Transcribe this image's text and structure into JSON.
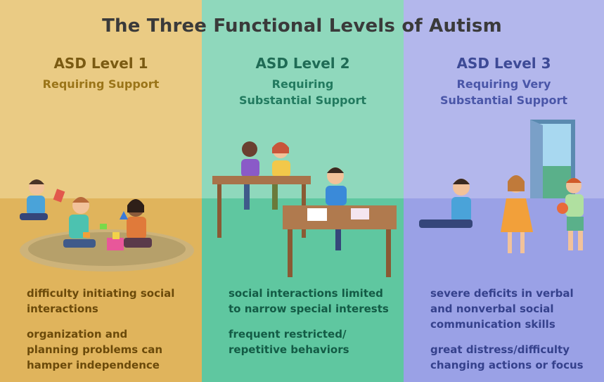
{
  "title": "The Three Functional Levels of Autism",
  "levels": [
    {
      "name": "ASD Level 1",
      "support": [
        "Requiring Support"
      ],
      "bullets": [
        [
          "difficulty initiating social",
          "interactions"
        ],
        [
          "organization and",
          "planning problems can",
          "hamper independence"
        ]
      ]
    },
    {
      "name": "ASD Level 2",
      "support": [
        "Requiring",
        "Substantial Support"
      ],
      "bullets": [
        [
          "social interactions limited",
          "to narrow special interests"
        ],
        [
          "frequent restricted/",
          "repetitive behaviors"
        ]
      ]
    },
    {
      "name": "ASD Level 3",
      "support": [
        "Requiring Very",
        "Substantial Support"
      ],
      "bullets": [
        [
          "severe deficits in verbal",
          "and nonverbal social",
          "communication skills"
        ],
        [
          "great distress/difficulty",
          "changing actions or focus"
        ]
      ]
    }
  ],
  "colors": {
    "level1_bg": "#eacb84",
    "level2_bg": "#8fd8bc",
    "level3_bg": "#b3b7ec"
  }
}
